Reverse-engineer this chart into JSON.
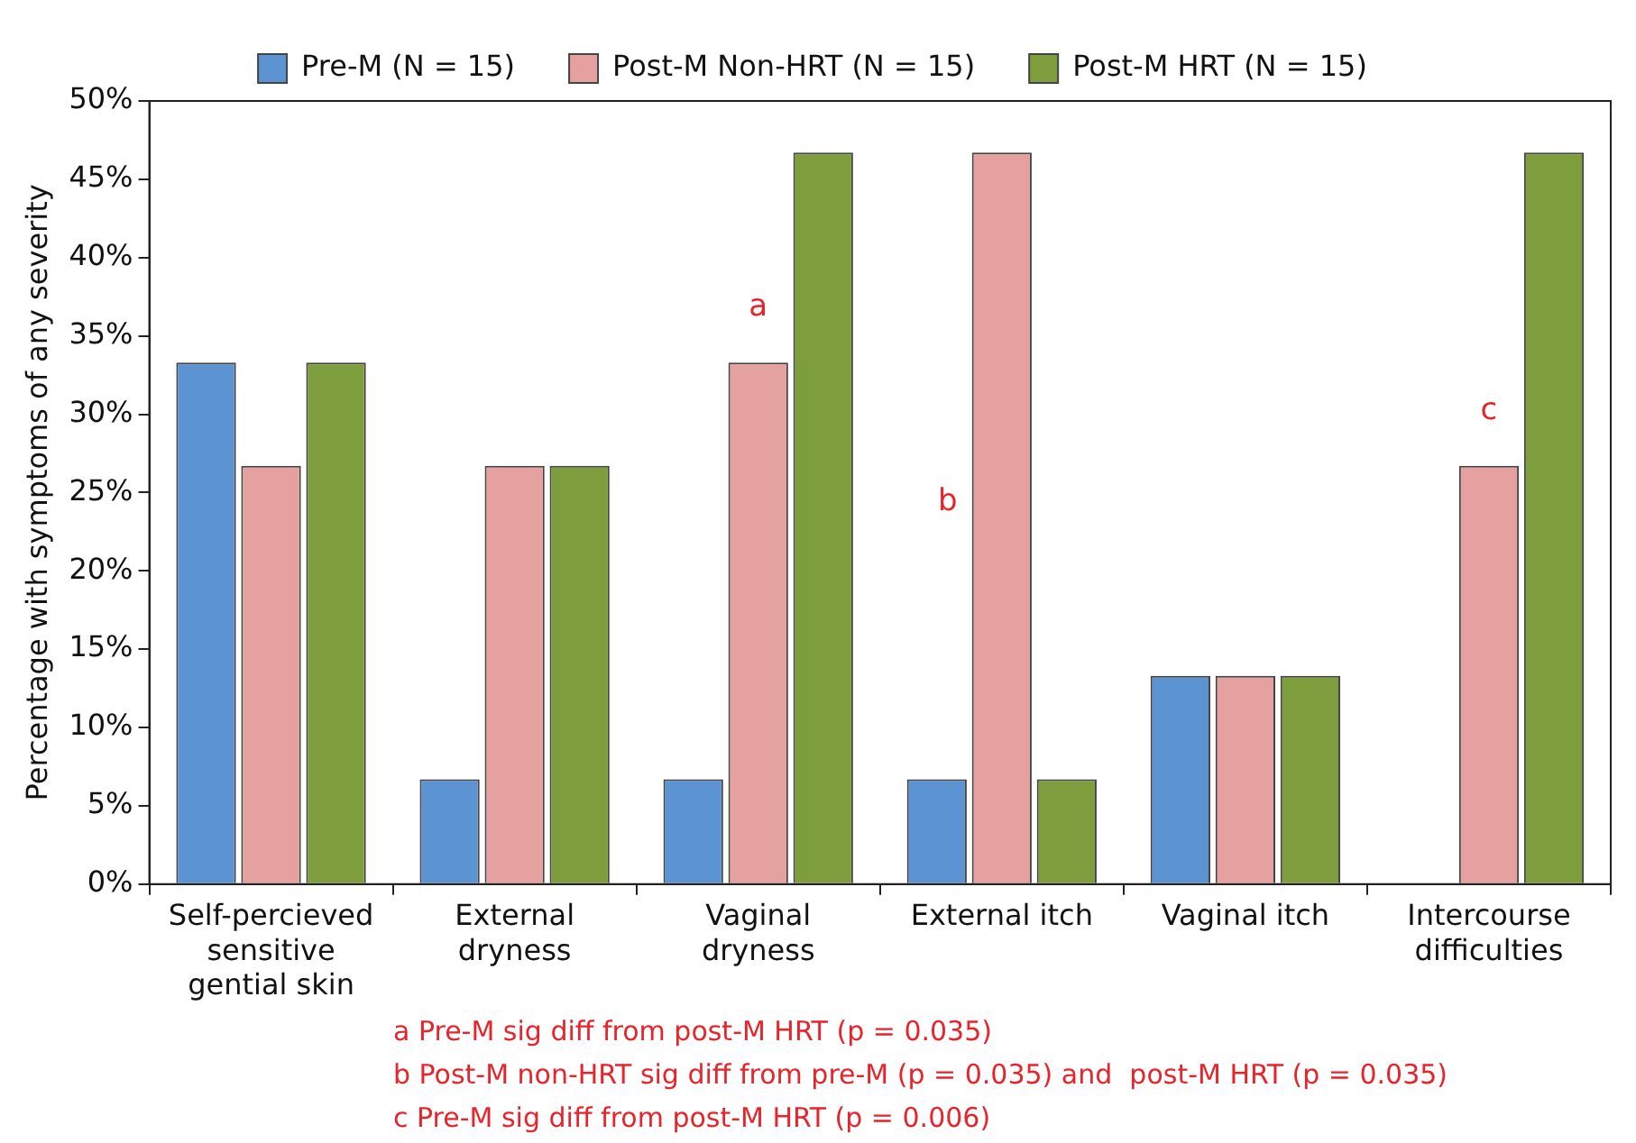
{
  "chart_data": {
    "type": "bar",
    "ylabel": "Percentage with symptoms of any severity",
    "categories": [
      "Self-percieved sensitive gential skin",
      "External dryness",
      "Vaginal dryness",
      "External itch",
      "Vaginal itch",
      "Intercourse difficulties"
    ],
    "series": [
      {
        "name": "Pre-M (N = 15)",
        "color": "#5b93d3",
        "values": [
          33.3,
          6.7,
          6.7,
          6.7,
          13.3,
          0
        ]
      },
      {
        "name": "Post-M Non-HRT (N = 15)",
        "color": "#e5a19f",
        "values": [
          26.7,
          26.7,
          33.3,
          46.7,
          13.3,
          26.7
        ],
        "value_labels": [
          null,
          null,
          "a",
          "b",
          null,
          "c"
        ]
      },
      {
        "name": "Post-M HRT (N = 15)",
        "color": "#7e9e3e",
        "values": [
          33.3,
          26.7,
          46.7,
          6.7,
          13.3,
          46.7
        ]
      }
    ],
    "ylim": [
      0,
      50
    ],
    "yticks": [
      {
        "value": 0,
        "label": "0%"
      },
      {
        "value": 5,
        "label": "5%"
      },
      {
        "value": 10,
        "label": "10%"
      },
      {
        "value": 15,
        "label": "15%"
      },
      {
        "value": 20,
        "label": "20%"
      },
      {
        "value": 25,
        "label": "25%"
      },
      {
        "value": 30,
        "label": "30%"
      },
      {
        "value": 35,
        "label": "35%"
      },
      {
        "value": 40,
        "label": "40%"
      },
      {
        "value": 45,
        "label": "45%"
      },
      {
        "value": 50,
        "label": "50%"
      }
    ],
    "grid": false,
    "legend": "top",
    "annotations": [
      "a Pre-M sig diff from post-M HRT (p = 0.035)",
      "b Post-M non-HRT sig diff from pre-M (p = 0.035) and  post-M HRT (p = 0.035)",
      "c Pre-M sig diff from post-M HRT (p = 0.006)"
    ]
  }
}
